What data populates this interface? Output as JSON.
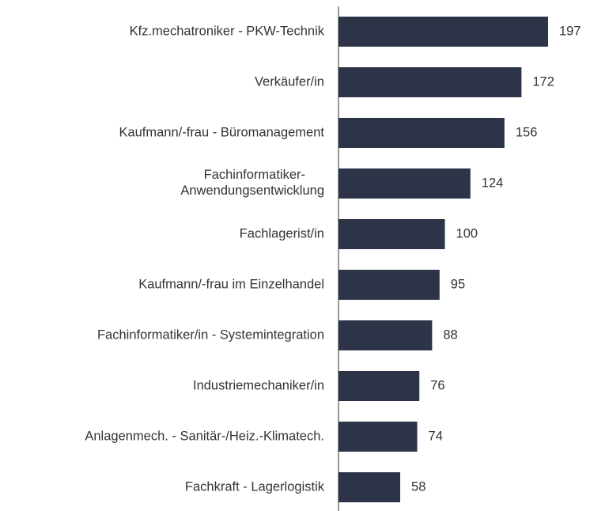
{
  "chart_data": {
    "type": "barh",
    "color": "#2e3447",
    "categories": [
      "Kfz.mechatroniker - PKW-Technik",
      "Verkäufer/in",
      "Kaufmann/-frau - Büromanagement",
      "Fachinformatiker-\nAnwendungsentwicklung",
      "Fachlagerist/in",
      "Kaufmann/-frau im Einzelhandel",
      "Fachinformatiker/in - Systemintegration",
      "Industriemechaniker/in",
      "Anlagenmech. - Sanitär-/Heiz.-Klimatech.",
      "Fachkraft - Lagerlogistik"
    ],
    "values": [
      197,
      172,
      156,
      124,
      100,
      95,
      88,
      76,
      74,
      58
    ]
  }
}
